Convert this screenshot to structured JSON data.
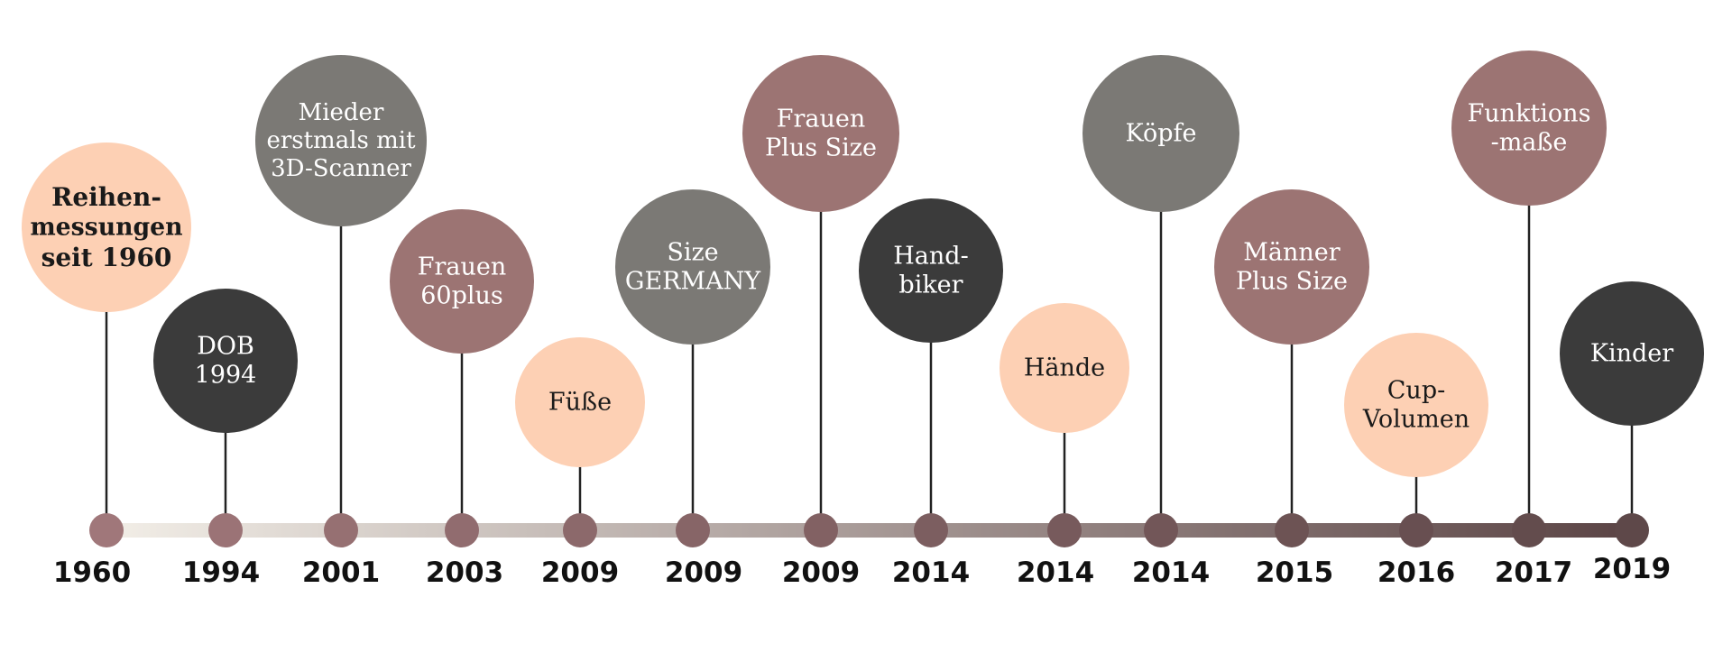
{
  "colors": {
    "peach": "#fdd0b4",
    "dark": "#3b3b3b",
    "gray": "#7b7975",
    "mauve": "#9c7473",
    "stem": "#222222",
    "axis_start": "#f3efe8",
    "axis_end": "#5a4344"
  },
  "milestones": [
    {
      "year": "1960",
      "label": [
        "Reihen-",
        "messungen",
        "seit 1960"
      ],
      "color": "peach",
      "bold": true
    },
    {
      "year": "1994",
      "label": [
        "DOB",
        "1994"
      ],
      "color": "dark"
    },
    {
      "year": "2001",
      "label": [
        "Mieder",
        "erstmals mit",
        "3D-Scanner"
      ],
      "color": "gray"
    },
    {
      "year": "2003",
      "label": [
        "Frauen",
        "60plus"
      ],
      "color": "mauve"
    },
    {
      "year": "2009",
      "label": [
        "Füße"
      ],
      "color": "peach"
    },
    {
      "year": "2009",
      "label": [
        "Size",
        "GERMANY"
      ],
      "color": "gray"
    },
    {
      "year": "2009",
      "label": [
        "Frauen",
        "Plus Size"
      ],
      "color": "mauve"
    },
    {
      "year": "2014",
      "label": [
        "Hand-",
        "biker"
      ],
      "color": "dark"
    },
    {
      "year": "2014",
      "label": [
        "Hände"
      ],
      "color": "peach"
    },
    {
      "year": "2014",
      "label": [
        "Köpfe"
      ],
      "color": "gray"
    },
    {
      "year": "2015",
      "label": [
        "Männer",
        "Plus Size"
      ],
      "color": "mauve"
    },
    {
      "year": "2016",
      "label": [
        "Cup-",
        "Volumen"
      ],
      "color": "peach"
    },
    {
      "year": "2017",
      "label": [
        "Funktions",
        "-maße"
      ],
      "color": "mauve"
    },
    {
      "year": "2019",
      "label": [
        "Kinder"
      ],
      "color": "dark"
    }
  ]
}
